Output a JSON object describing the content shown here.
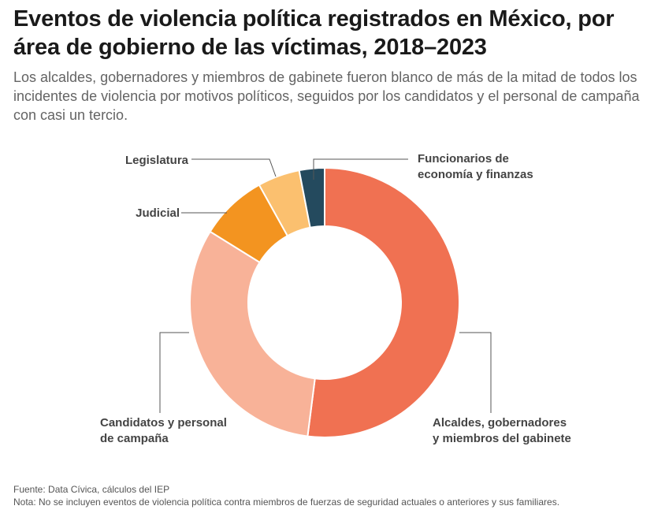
{
  "title": "Eventos de violencia política registrados en México, por área de gobierno de las víctimas, 2018–2023",
  "subtitle": "Los alcaldes, gobernadores y miembros de gabinete fueron blanco de más de la mitad de todos los incidentes de violencia por motivos políticos, seguidos por los candidatos y el personal de campaña con casi un tercio.",
  "chart_data": {
    "type": "pie",
    "donut": true,
    "title": "Eventos de violencia política registrados en México, por área de gobierno de las víctimas, 2018–2023",
    "series": [
      {
        "name": "Alcaldes, gobernadores y miembros del gabinete",
        "value": 51.5,
        "color": "#F07152"
      },
      {
        "name": "Candidatos y personal de campaña",
        "value": 31.5,
        "color": "#F8B298"
      },
      {
        "name": "Judicial",
        "value": 8.0,
        "color": "#F39420"
      },
      {
        "name": "Legislatura",
        "value": 5.0,
        "color": "#FBC06F"
      },
      {
        "name": "Funcionarios de economía y finanzas",
        "value": 3.0,
        "color": "#244A5E"
      }
    ],
    "labels": [
      {
        "lines": [
          "Alcaldes, gobernadores",
          "y miembros del gabinete"
        ]
      },
      {
        "lines": [
          "Candidatos y personal",
          "de campaña"
        ]
      },
      {
        "lines": [
          "Judicial"
        ]
      },
      {
        "lines": [
          "Legislatura"
        ]
      },
      {
        "lines": [
          "Funcionarios de",
          "economía y finanzas"
        ]
      }
    ]
  },
  "footer": {
    "source": "Fuente: Data Cívica, cálculos del IEP",
    "note": "Nota: No se incluyen eventos de violencia política contra miembros de fuerzas de seguridad actuales o anteriores y sus familiares."
  }
}
